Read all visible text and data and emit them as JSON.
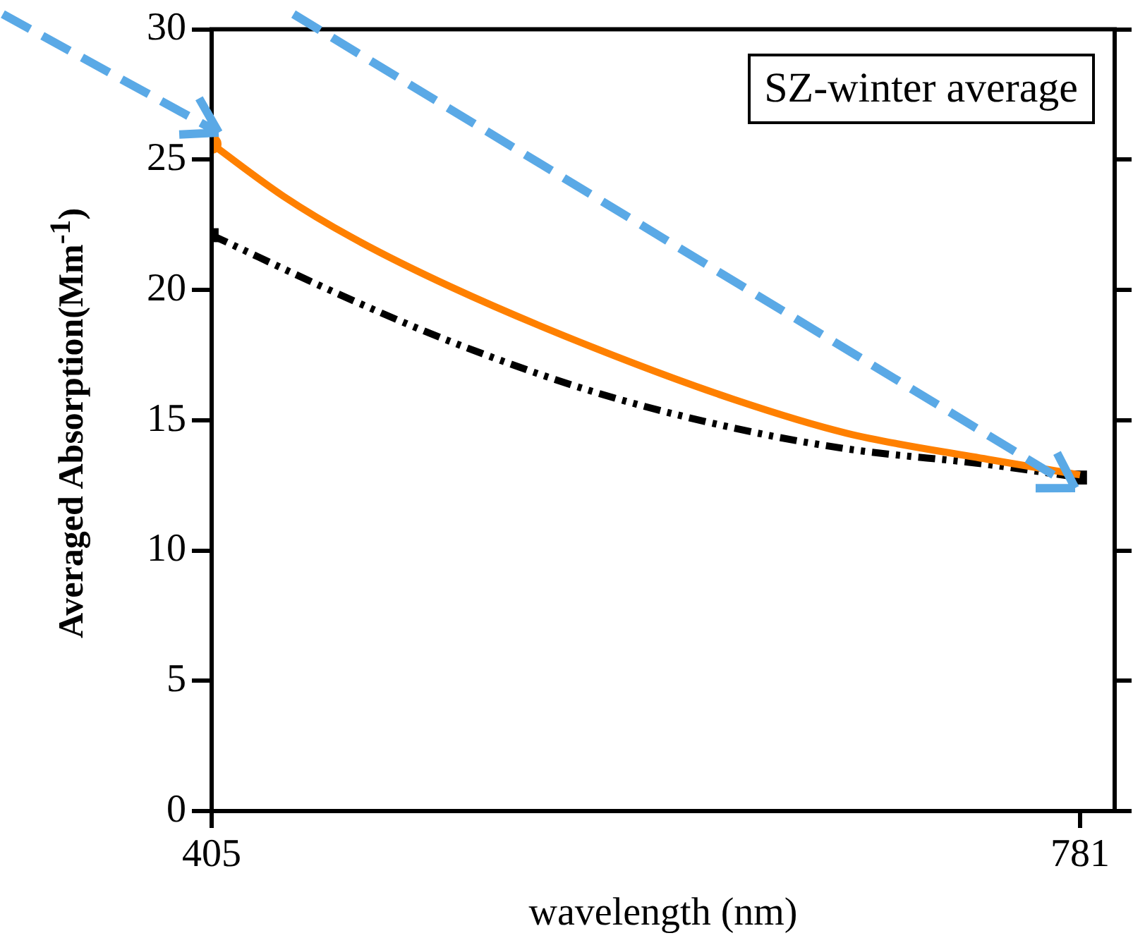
{
  "chart_data": {
    "type": "line",
    "xlabel": "wavelength (nm)",
    "ylabel": "Averaged Absorption(Mm$^{-1}$)",
    "annotations": [
      "SZ-winter average"
    ],
    "xlim": [
      405,
      796
    ],
    "xticks": [
      405,
      781
    ],
    "ylim": [
      0,
      30
    ],
    "yticks": [
      0,
      5,
      10,
      15,
      20,
      25,
      30
    ],
    "grid": false,
    "legend": false,
    "series": [
      {
        "color": "#ff8000",
        "marker": "none",
        "line_style": "solid",
        "x": [
          405,
          436,
          466,
          509,
          570,
          631,
          680,
          741,
          781
        ],
        "values": [
          25.6,
          23.6,
          22.0,
          20.1,
          17.8,
          15.8,
          14.5,
          13.5,
          12.9
        ]
      },
      {
        "color": "#000000",
        "marker": "none",
        "line_style": "dashed",
        "x": [
          405,
          466,
          509,
          570,
          631,
          680,
          741,
          781
        ],
        "values": [
          22.1,
          19.6,
          18.0,
          16.1,
          14.7,
          13.9,
          13.3,
          12.8
        ]
      },
      {
        "type": "scatter",
        "color": "#ff8000",
        "marker": "circle",
        "x": [
          405
        ],
        "values": [
          25.6
        ]
      },
      {
        "type": "scatter",
        "color": "#000000",
        "marker": "square",
        "x": [
          405,
          781
        ],
        "values": [
          22.1,
          12.8
        ]
      }
    ]
  }
}
